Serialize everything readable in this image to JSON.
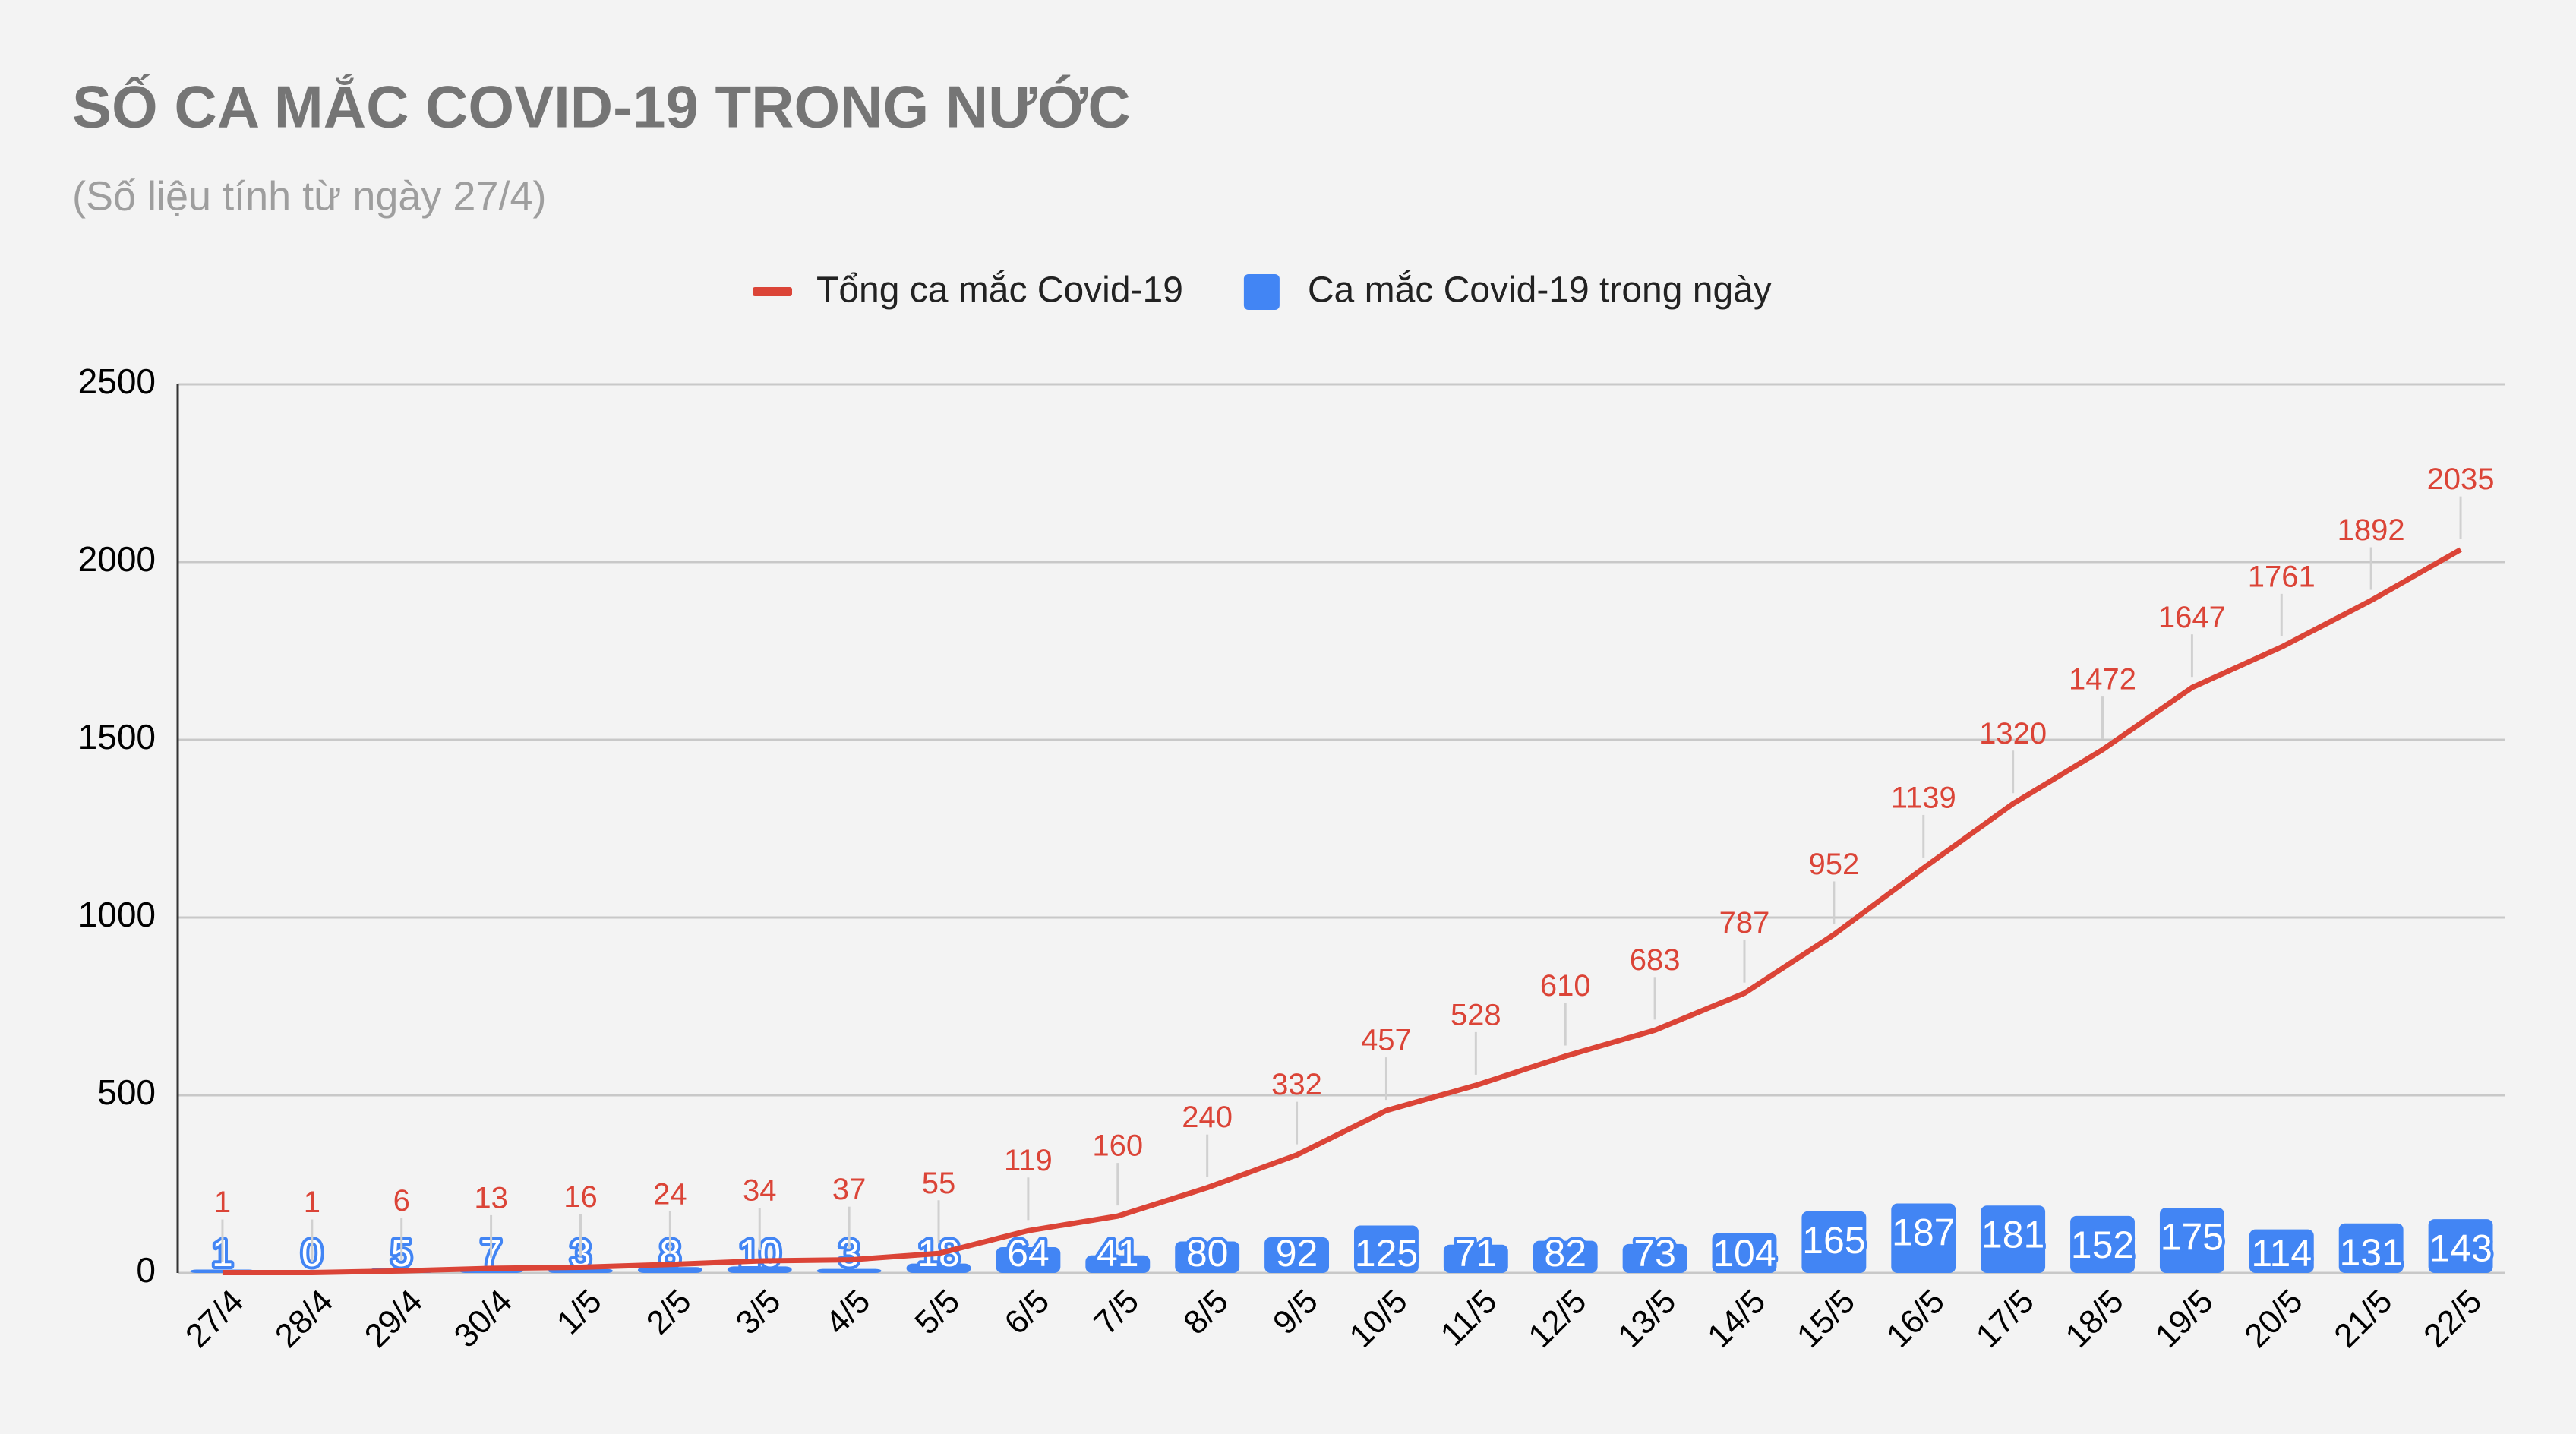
{
  "chart_data": {
    "type": "combo",
    "title": "SỐ CA MẮC COVID-19 TRONG NƯỚC",
    "subtitle": "(Số liệu tính từ ngày 27/4)",
    "categories": [
      "27/4",
      "28/4",
      "29/4",
      "30/4",
      "1/5",
      "2/5",
      "3/5",
      "4/5",
      "5/5",
      "6/5",
      "7/5",
      "8/5",
      "9/5",
      "10/5",
      "11/5",
      "12/5",
      "13/5",
      "14/5",
      "15/5",
      "16/5",
      "17/5",
      "18/5",
      "19/5",
      "20/5",
      "21/5",
      "22/5"
    ],
    "series": [
      {
        "name": "Tổng ca mắc Covid-19",
        "type": "line",
        "color": "#db4437",
        "values": [
          1,
          1,
          6,
          13,
          16,
          24,
          34,
          37,
          55,
          119,
          160,
          240,
          332,
          457,
          528,
          610,
          683,
          787,
          952,
          1139,
          1320,
          1472,
          1647,
          1761,
          1892,
          2035
        ]
      },
      {
        "name": "Ca mắc Covid-19 trong ngày",
        "type": "bar",
        "color": "#4285f4",
        "values": [
          1,
          0,
          5,
          7,
          3,
          8,
          10,
          3,
          18,
          64,
          41,
          80,
          92,
          125,
          71,
          82,
          73,
          104,
          165,
          187,
          181,
          152,
          175,
          114,
          131,
          143
        ]
      }
    ],
    "ylim": [
      0,
      2500
    ],
    "yticks": [
      0,
      500,
      1000,
      1500,
      2000,
      2500
    ],
    "grid": true,
    "legend": "top"
  }
}
